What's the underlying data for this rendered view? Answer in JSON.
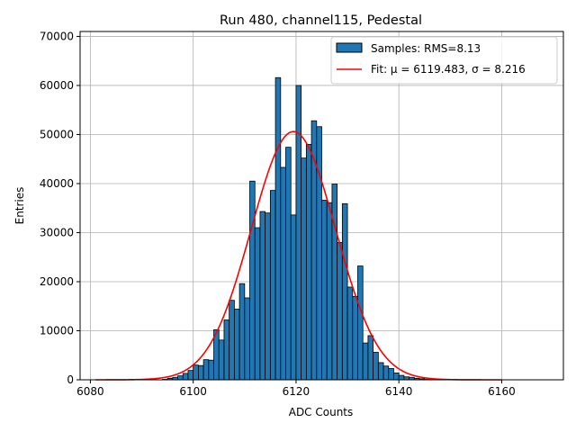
{
  "chart_data": {
    "type": "histogram",
    "title": "Run 480, channel115, Pedestal",
    "xlabel": "ADC Counts",
    "ylabel": "Entries",
    "xlim": [
      6078,
      6172
    ],
    "ylim": [
      0,
      71000
    ],
    "xticks": [
      6080,
      6100,
      6120,
      6140,
      6160
    ],
    "yticks": [
      0,
      10000,
      20000,
      30000,
      40000,
      50000,
      60000,
      70000
    ],
    "xtick_labels": [
      "6080",
      "6100",
      "6120",
      "6140",
      "6160"
    ],
    "ytick_labels": [
      "0",
      "10000",
      "20000",
      "30000",
      "40000",
      "50000",
      "60000",
      "70000"
    ],
    "grid": true,
    "legend_position": "top-right",
    "bins": {
      "start": 6094,
      "width": 1,
      "counts": [
        100,
        300,
        500,
        800,
        1300,
        1900,
        3000,
        2900,
        4100,
        4000,
        10200,
        8100,
        12200,
        16200,
        14400,
        19600,
        16700,
        40500,
        31000,
        34300,
        34000,
        38600,
        61600,
        43300,
        47400,
        33600,
        60000,
        45200,
        48000,
        52800,
        51600,
        36600,
        36100,
        39900,
        28000,
        35900,
        18900,
        17000,
        23200,
        7500,
        9000,
        5600,
        3500,
        2800,
        2300,
        1400,
        900,
        600,
        500,
        300,
        200,
        100,
        100,
        50
      ]
    },
    "series": [
      {
        "name": "Samples: RMS=8.13",
        "type": "bar",
        "color": "#1f77b4",
        "edge_color": "#000000"
      },
      {
        "name": "Fit: μ = 6119.483, σ = 8.216",
        "type": "line",
        "color": "#ff0000",
        "gaussian": {
          "amplitude": 50600,
          "mean": 6119.483,
          "sigma": 8.216,
          "x_range": [
            6081,
            6160
          ]
        }
      }
    ]
  }
}
